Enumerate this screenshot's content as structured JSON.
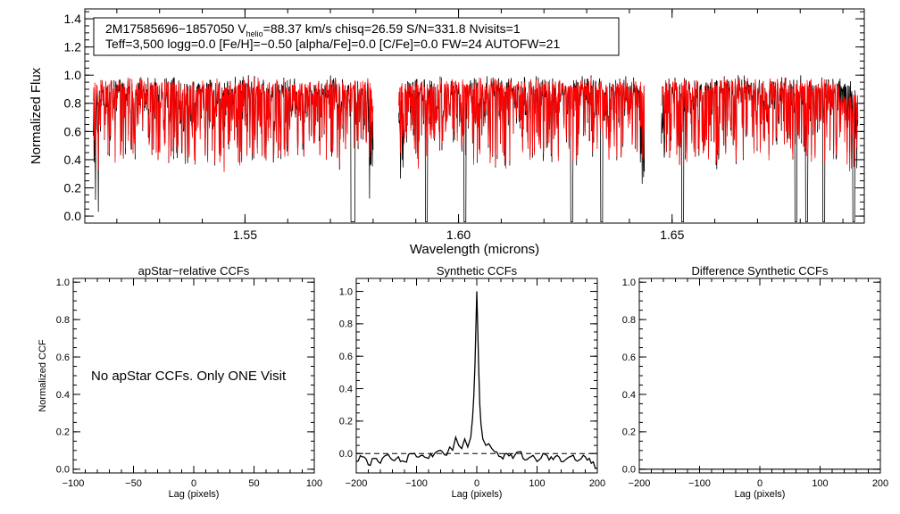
{
  "chart_data": [
    {
      "type": "line",
      "id": "spectrum",
      "title_line1": {
        "star_id": "2M17585696−1857050",
        "v_prefix": "V",
        "v_sub": "helio",
        "v_value": "=88.37 km/s",
        "chisq": "chisq=26.59",
        "sn": "S/N=331.8",
        "nvisits": "Nvisits=1"
      },
      "title_line2": "Teff=3,500 logg=0.0 [Fe/H]=−0.50 [alpha/Fe]=0.0 [C/Fe]=0.0 FW=24 AUTOFW=21",
      "xlabel": "Wavelength (microns)",
      "ylabel": "Normalized Flux",
      "xlim": [
        1.5125,
        1.695
      ],
      "ylim": [
        -0.05,
        1.47
      ],
      "x_ticks": [
        1.55,
        1.6,
        1.65
      ],
      "x_tick_labels": [
        "1.55",
        "1.60",
        "1.65"
      ],
      "y_ticks": [
        0.0,
        0.2,
        0.4,
        0.6,
        0.8,
        1.0,
        1.2,
        1.4
      ],
      "y_tick_labels": [
        "0.0",
        "0.2",
        "0.4",
        "0.6",
        "0.8",
        "1.0",
        "1.2",
        "1.4"
      ],
      "segments_microns": [
        [
          1.5145,
          1.58
        ],
        [
          1.586,
          1.6435
        ],
        [
          1.6475,
          1.6935
        ]
      ],
      "series": [
        {
          "name": "observed",
          "color": "#000000"
        },
        {
          "name": "synthetic",
          "color": "#ff0000"
        }
      ],
      "deep_lines_microns": [
        1.575,
        1.5755,
        1.5925,
        1.6015,
        1.6265,
        1.6335,
        1.6525,
        1.679,
        1.6815,
        1.6855,
        1.6925
      ]
    },
    {
      "type": "line",
      "id": "apstar_ccf",
      "title": "apStar−relative CCFs",
      "xlabel": "Lag (pixels)",
      "ylabel": "Normalized CCF",
      "xlim": [
        -100,
        100
      ],
      "ylim": [
        -0.02,
        1.02
      ],
      "x_ticks": [
        -100,
        -50,
        0,
        50,
        100
      ],
      "x_tick_labels": [
        "−100",
        "−50",
        "0",
        "50",
        "100"
      ],
      "y_ticks": [
        0.0,
        0.2,
        0.4,
        0.6,
        0.8,
        1.0
      ],
      "y_tick_labels": [
        "0.0",
        "0.2",
        "0.4",
        "0.6",
        "0.8",
        "1.0"
      ],
      "annotation": "No apStar CCFs.  Only ONE Visit"
    },
    {
      "type": "line",
      "id": "synthetic_ccf",
      "title": "Synthetic CCFs",
      "xlabel": "Lag (pixels)",
      "xlim": [
        -200,
        200
      ],
      "ylim": [
        -0.12,
        1.08
      ],
      "x_ticks": [
        -200,
        -100,
        0,
        100,
        200
      ],
      "x_tick_labels": [
        "−200",
        "−100",
        "0",
        "100",
        "200"
      ],
      "y_ticks": [
        0.0,
        0.2,
        0.4,
        0.6,
        0.8,
        1.0
      ],
      "y_tick_labels": [
        "0.0",
        "0.2",
        "0.4",
        "0.6",
        "0.8",
        "1.0"
      ],
      "x": [
        -200,
        -190,
        -180,
        -170,
        -160,
        -150,
        -140,
        -130,
        -120,
        -110,
        -100,
        -90,
        -80,
        -70,
        -60,
        -50,
        -45,
        -40,
        -35,
        -30,
        -25,
        -20,
        -15,
        -10,
        -7,
        -5,
        -3,
        -1,
        0,
        1,
        3,
        5,
        7,
        10,
        15,
        20,
        25,
        30,
        40,
        50,
        60,
        70,
        80,
        90,
        100,
        110,
        120,
        130,
        140,
        150,
        160,
        170,
        180,
        190,
        200
      ],
      "y": [
        -0.05,
        -0.02,
        -0.07,
        -0.03,
        -0.06,
        -0.01,
        -0.04,
        -0.02,
        -0.05,
        0.0,
        -0.02,
        -0.01,
        -0.03,
        0.0,
        0.02,
        -0.01,
        0.04,
        0.02,
        0.1,
        0.05,
        0.03,
        0.09,
        0.04,
        0.1,
        0.22,
        0.35,
        0.55,
        0.85,
        1.0,
        0.86,
        0.55,
        0.3,
        0.18,
        0.09,
        0.05,
        0.06,
        0.03,
        0.01,
        -0.02,
        0.0,
        -0.03,
        0.01,
        -0.04,
        -0.02,
        -0.05,
        0.0,
        -0.04,
        -0.02,
        -0.05,
        -0.03,
        -0.01,
        -0.04,
        -0.02,
        -0.06,
        -0.09
      ],
      "zero_line": 0.0
    },
    {
      "type": "line",
      "id": "difference_ccf",
      "title": "Difference Synthetic CCFs",
      "xlabel": "Lag (pixels)",
      "xlim": [
        -200,
        200
      ],
      "ylim": [
        -0.02,
        1.02
      ],
      "x_ticks": [
        -200,
        -100,
        0,
        100,
        200
      ],
      "x_tick_labels": [
        "−200",
        "−100",
        "0",
        "100",
        "200"
      ],
      "y_ticks": [
        0.0,
        0.2,
        0.4,
        0.6,
        0.8,
        1.0
      ],
      "y_tick_labels": [
        "0.0",
        "0.2",
        "0.4",
        "0.6",
        "0.8",
        "1.0"
      ],
      "values_flat": 0.0
    }
  ]
}
